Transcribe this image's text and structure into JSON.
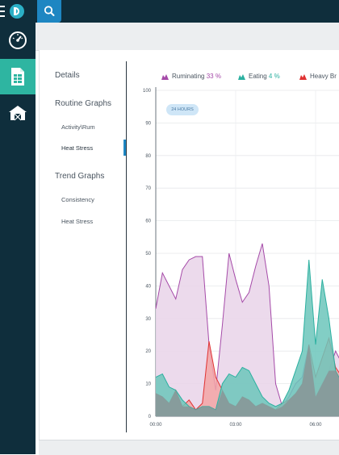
{
  "search": {
    "icon": "search-icon"
  },
  "sidebar": {
    "items": [
      {
        "icon": "gauge-icon",
        "active": false
      },
      {
        "icon": "document-icon",
        "active": true
      },
      {
        "icon": "barn-icon",
        "active": false
      }
    ]
  },
  "nav": {
    "details": "Details",
    "routine_header": "Routine Graphs",
    "routine_items": [
      "Activity\\Rum",
      "Heat Stress"
    ],
    "trend_header": "Trend Graphs",
    "trend_items": [
      "Consistency",
      "Heat Stress"
    ]
  },
  "legend": [
    {
      "label": "Ruminating",
      "value": "33 %",
      "color": "#a54aa8"
    },
    {
      "label": "Eating",
      "value": "4 %",
      "color": "#2bb0a0"
    },
    {
      "label": "Heavy Br",
      "value": "",
      "color": "#e03232"
    }
  ],
  "badge": "24 HOURS",
  "chart_data": {
    "type": "area",
    "ylim": [
      0,
      100
    ],
    "yticks": [
      "0",
      "10",
      "20",
      "30",
      "40",
      "50",
      "60",
      "70",
      "80",
      "90",
      "100"
    ],
    "xticks": [
      "00:00",
      "03:00",
      "06:00"
    ],
    "x": [
      0,
      0.25,
      0.5,
      0.75,
      1,
      1.25,
      1.5,
      1.75,
      2,
      2.25,
      2.5,
      2.75,
      3,
      3.25,
      3.5,
      3.75,
      4,
      4.25,
      4.5,
      4.75,
      5,
      5.25,
      5.5,
      5.75,
      6,
      6.25,
      6.5,
      6.75,
      7
    ],
    "series": [
      {
        "name": "Ruminating",
        "color": "#a54aa8",
        "fill": "#ead6ea",
        "values": [
          33,
          44,
          40,
          36,
          45,
          48,
          49,
          49,
          22,
          8,
          28,
          50,
          42,
          35,
          38,
          46,
          53,
          40,
          10,
          3,
          6,
          10,
          12,
          22,
          6,
          10,
          14,
          20,
          16
        ]
      },
      {
        "name": "Eating",
        "color": "#2bb0a0",
        "fill": "#6cc6bb",
        "values": [
          12,
          13,
          9,
          8,
          5,
          3,
          2,
          3,
          3,
          2,
          10,
          13,
          12,
          15,
          14,
          10,
          6,
          4,
          3,
          4,
          8,
          14,
          20,
          48,
          22,
          42,
          30,
          14,
          10
        ]
      },
      {
        "name": "Heavy Br",
        "color": "#e03232",
        "fill": "#f3a4a6",
        "values": [
          7,
          6,
          4,
          8,
          3,
          5,
          2,
          4,
          23,
          12,
          8,
          4,
          3,
          6,
          5,
          3,
          4,
          3,
          2,
          4,
          5,
          7,
          10,
          22,
          12,
          18,
          24,
          15,
          12
        ]
      }
    ]
  }
}
